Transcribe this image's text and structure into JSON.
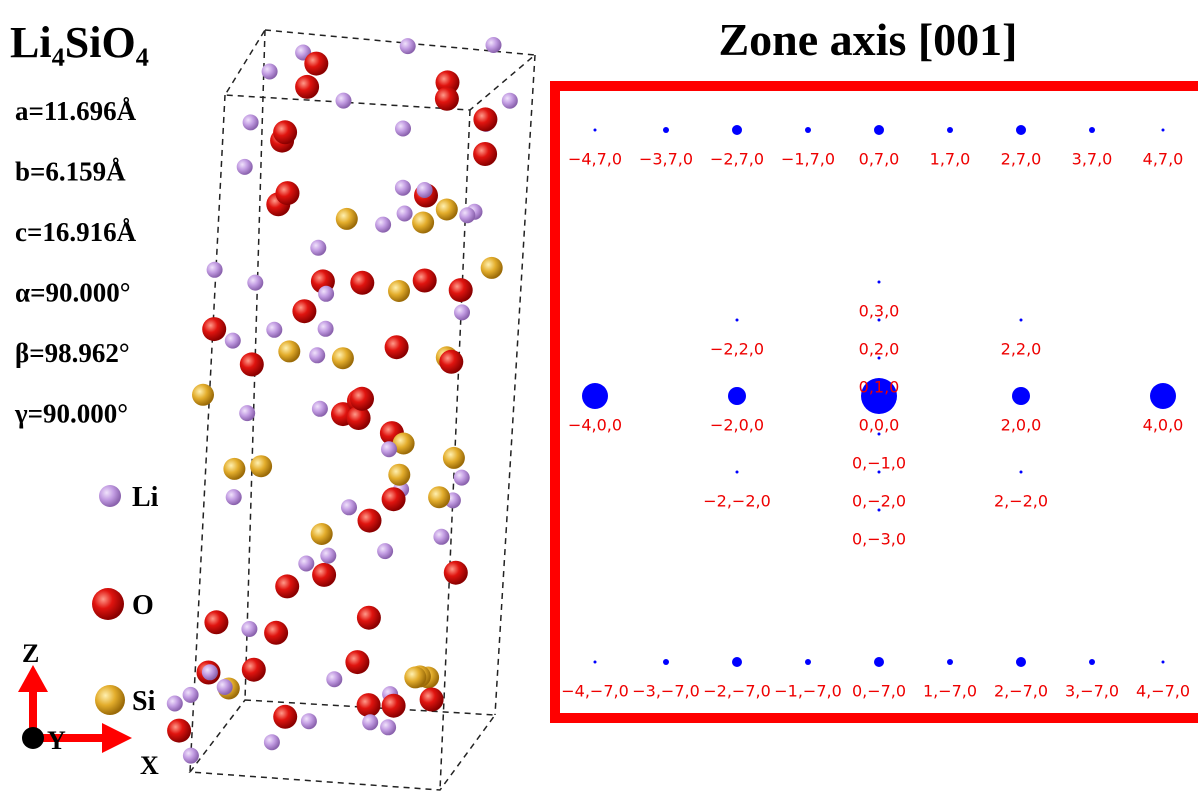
{
  "structure": {
    "title": "Li₄SiO₄",
    "parameters": [
      "a=11.696Å",
      "b=6.159Å",
      "c=16.916Å",
      "α=90.000°",
      "β=98.962°",
      "γ=90.000°"
    ],
    "legend": [
      "Li",
      "O",
      "Si"
    ],
    "axes": [
      "Z",
      "Y",
      "X"
    ]
  },
  "pattern": {
    "title": "Zone axis [001]",
    "spot_labels": [
      "−4,7,0",
      "−3,7,0",
      "−2,7,0",
      "−1,7,0",
      "0,7,0",
      "1,7,0",
      "2,7,0",
      "3,7,0",
      "4,7,0",
      "0,3,0",
      "−2,2,0",
      "0,2,0",
      "2,2,0",
      "0,1,0",
      "−4,0,0",
      "−2,0,0",
      "0,0,0",
      "2,0,0",
      "4,0,0",
      "0,−1,0",
      "−2,−2,0",
      "0,−2,0",
      "2,−2,0",
      "0,−3,0",
      "−4,−7,0",
      "−3,−7,0",
      "−2,−7,0",
      "−1,−7,0",
      "0,−7,0",
      "1,−7,0",
      "2,−7,0",
      "3,−7,0",
      "4,−7,0"
    ]
  }
}
